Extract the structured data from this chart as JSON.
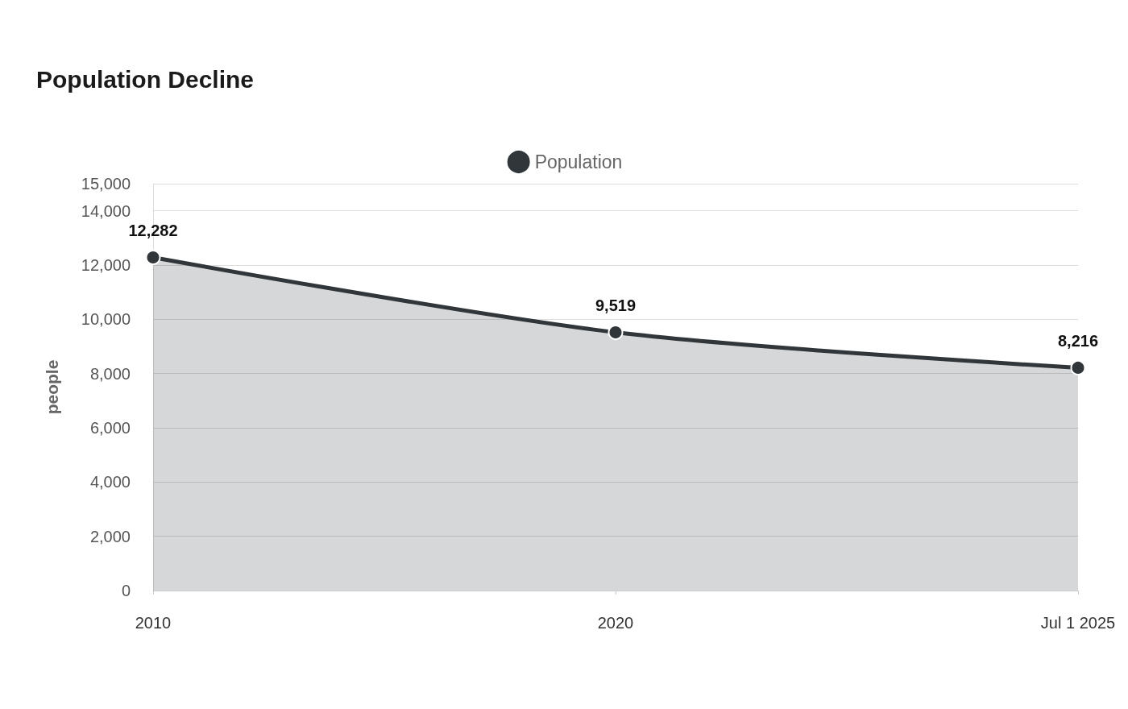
{
  "chart_data": {
    "type": "area",
    "title": "Population Decline",
    "ylabel": "people",
    "categories": [
      "2010",
      "2020",
      "Jul 1 2025"
    ],
    "series": [
      {
        "name": "Population",
        "color": "#30363a",
        "values": [
          12282,
          9519,
          8216
        ],
        "value_labels": [
          "12,282",
          "9,519",
          "8,216"
        ]
      }
    ],
    "ylim": [
      0,
      15000
    ],
    "yticks": [
      0,
      {
        "value": 2000,
        "label": "2,000"
      },
      {
        "value": 4000,
        "label": "4,000"
      },
      {
        "value": 6000,
        "label": "6,000"
      },
      {
        "value": 8000,
        "label": "8,000"
      },
      {
        "value": 10000,
        "label": "10,000"
      },
      {
        "value": 12000,
        "label": "12,000"
      },
      {
        "value": 14000,
        "label": "14,000"
      },
      {
        "value": 15000,
        "label": "15,000"
      }
    ],
    "grid": "y",
    "legend": "top",
    "marker": "circle",
    "line_style": "solid"
  }
}
